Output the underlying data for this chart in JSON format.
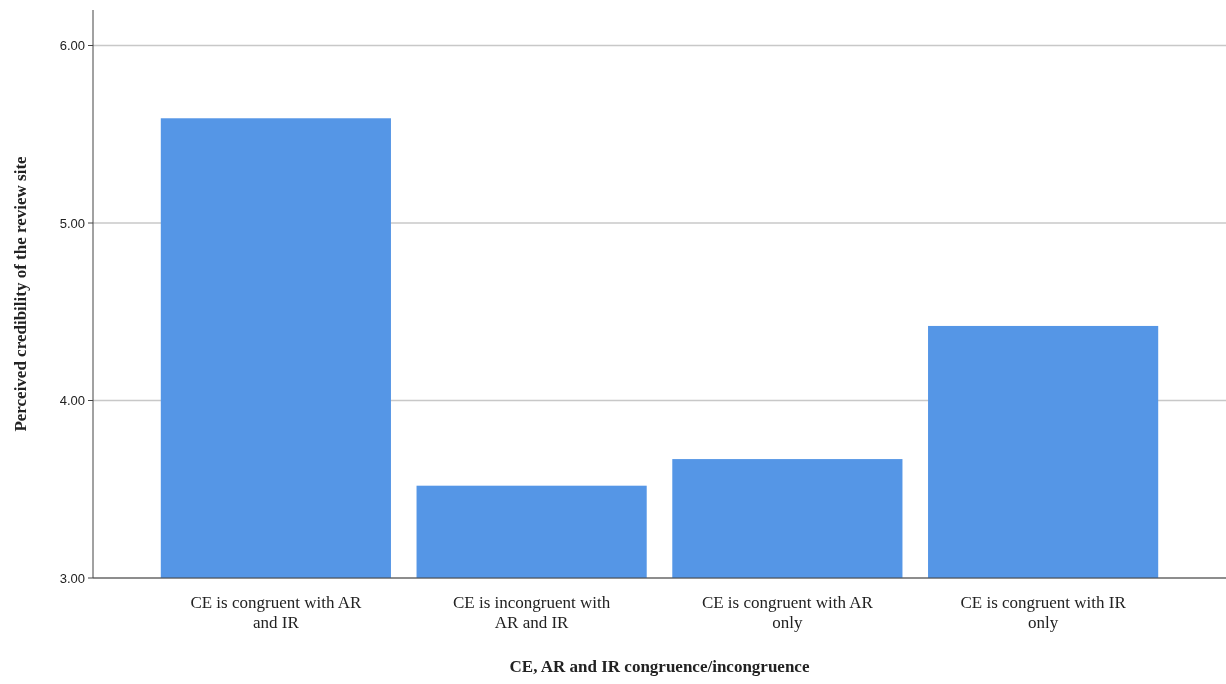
{
  "chart_data": {
    "type": "bar",
    "xlabel": "CE, AR and IR congruence/incongruence",
    "ylabel": "Perceived credibility of the review site",
    "categories": [
      "CE is congruent with AR and IR",
      "CE is incongruent with AR and IR",
      "CE is congruent with AR only",
      "CE is congruent with IR only"
    ],
    "values": [
      5.59,
      3.52,
      3.67,
      4.42
    ],
    "color": "#5596e6",
    "ylim": [
      3,
      6.2
    ],
    "yticks": [
      {
        "value": 3,
        "label": "3.00"
      },
      {
        "value": 4,
        "label": "4.00"
      },
      {
        "value": 5,
        "label": "5.00"
      },
      {
        "value": 6,
        "label": "6.00"
      }
    ],
    "grid": "y"
  }
}
